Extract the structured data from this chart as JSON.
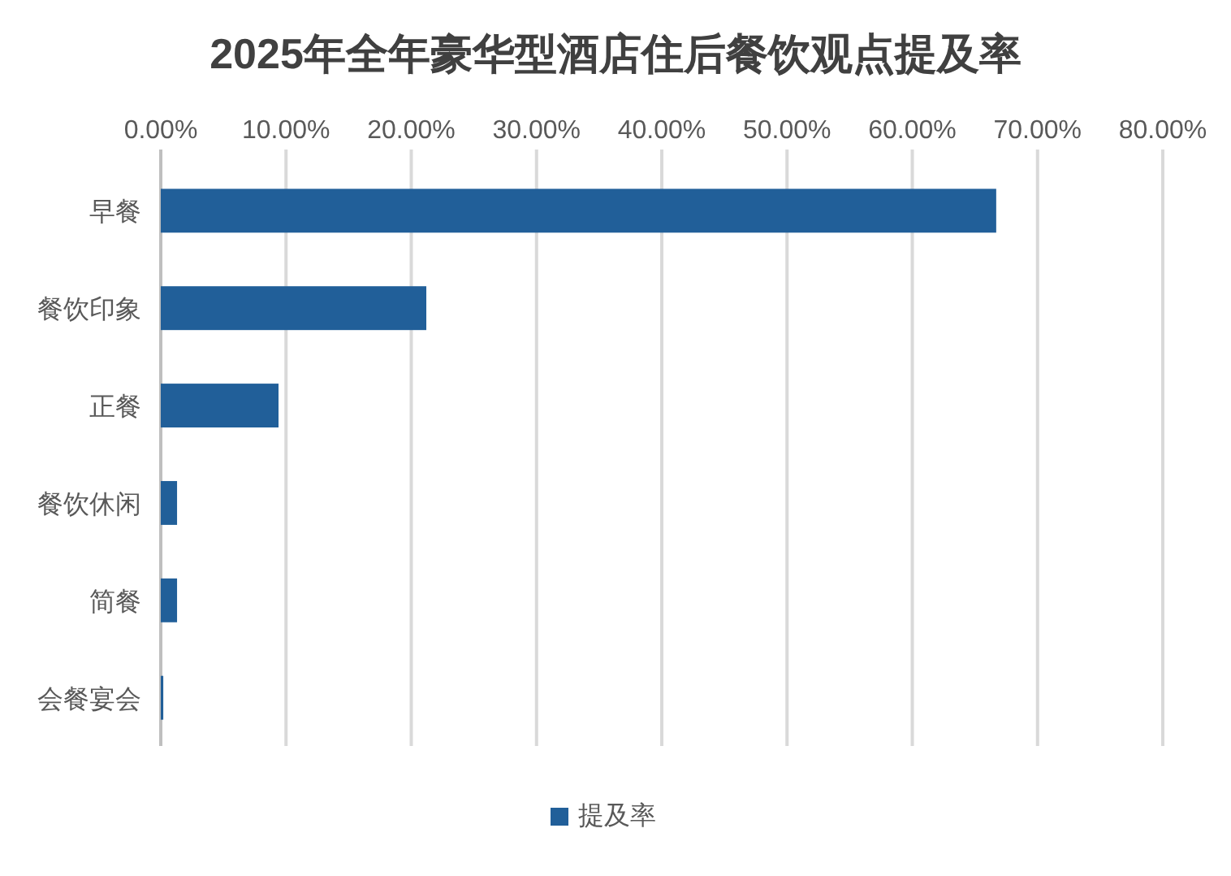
{
  "chart_data": {
    "type": "bar",
    "orientation": "horizontal",
    "title": "2025年全年豪华型酒店住后餐饮观点提及率",
    "categories": [
      "早餐",
      "餐饮印象",
      "正餐",
      "餐饮休闲",
      "简餐",
      "会餐宴会"
    ],
    "series": [
      {
        "name": "提及率",
        "color": "#215f99",
        "values": [
          66.7,
          21.2,
          9.4,
          1.3,
          1.3,
          0.2
        ]
      }
    ],
    "xlim": [
      0,
      80
    ],
    "xticks": [
      {
        "value": 0,
        "label": "0.00%"
      },
      {
        "value": 10,
        "label": "10.00%"
      },
      {
        "value": 20,
        "label": "20.00%"
      },
      {
        "value": 30,
        "label": "30.00%"
      },
      {
        "value": 40,
        "label": "40.00%"
      },
      {
        "value": 50,
        "label": "50.00%"
      },
      {
        "value": 60,
        "label": "60.00%"
      },
      {
        "value": 70,
        "label": "70.00%"
      },
      {
        "value": 80,
        "label": "80.00%"
      }
    ],
    "grid": "x",
    "legend": "bottom"
  }
}
